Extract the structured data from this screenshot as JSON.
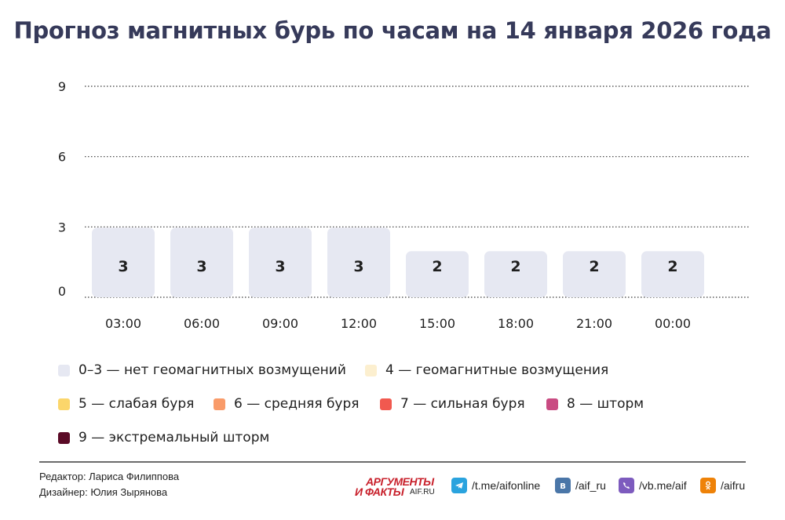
{
  "title": "Прогноз магнитных бурь по часам на 14 января 2026 года",
  "chart_data": {
    "type": "bar",
    "categories": [
      "03:00",
      "06:00",
      "09:00",
      "12:00",
      "15:00",
      "18:00",
      "21:00",
      "00:00"
    ],
    "values": [
      3,
      3,
      3,
      3,
      2,
      2,
      2,
      2
    ],
    "ylim": [
      0,
      9
    ],
    "yticks": [
      "0",
      "3",
      "6",
      "9"
    ],
    "grid": true,
    "bar_color": "#e6e8f2",
    "legend": [
      {
        "label": "0–3 — нет геомагнитных возмущений",
        "color": "#e6e8f2"
      },
      {
        "label": "4 — геомагнитные возмущения",
        "color": "#fcefcf"
      },
      {
        "label": "5 — слабая буря",
        "color": "#fbd66b"
      },
      {
        "label": "6 — средняя буря",
        "color": "#f99b69"
      },
      {
        "label": "7 — сильная буря",
        "color": "#f1594f"
      },
      {
        "label": "8 — шторм",
        "color": "#c94b82"
      },
      {
        "label": "9 — экстремальный шторм",
        "color": "#5a0a26"
      }
    ]
  },
  "footer": {
    "editor": "Редактор: Лариса Филиппова",
    "designer": "Дизайнер: Юлия Зырянова",
    "logo_line1": "АРГУМЕНТЫ",
    "logo_line2": "И ФАКТЫ",
    "logo_site": "AIF.RU",
    "social": [
      {
        "icon": "telegram-icon",
        "text": "/t.me/aifonline",
        "color": "#2aa3de"
      },
      {
        "icon": "vk-icon",
        "text": "/aif_ru",
        "color": "#4a76a8"
      },
      {
        "icon": "viber-icon",
        "text": "/vb.me/aif",
        "color": "#7d5bbe"
      },
      {
        "icon": "odnoklassniki-icon",
        "text": "/aifru",
        "color": "#ee8208"
      }
    ]
  }
}
